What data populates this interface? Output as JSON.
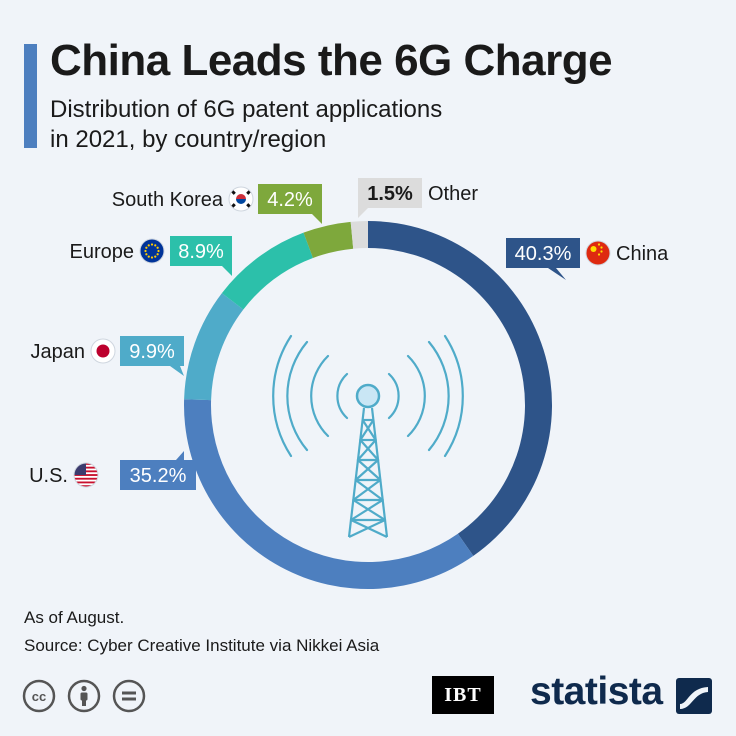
{
  "header": {
    "title": "China Leads the 6G Charge",
    "subtitle_line1": "Distribution of 6G patent applications",
    "subtitle_line2": "in 2021, by country/region"
  },
  "chart_data": {
    "type": "donut",
    "title": "China Leads the 6G Charge",
    "subtitle": "Distribution of 6G patent applications in 2021, by country/region",
    "unit": "%",
    "categories": [
      "China",
      "U.S.",
      "Japan",
      "Europe",
      "South Korea",
      "Other"
    ],
    "values": [
      40.3,
      35.2,
      9.9,
      8.9,
      4.2,
      1.5
    ],
    "labels": [
      "40.3%",
      "35.2%",
      "9.9%",
      "8.9%",
      "4.2%",
      "1.5%"
    ],
    "colors": [
      "#2e5489",
      "#4d7fbf",
      "#4fabc9",
      "#2cc0aa",
      "#7ea83c",
      "#dcdcdc"
    ],
    "label_colors": [
      "#2e5489",
      "#4d7fbf",
      "#4fabc9",
      "#2cc0aa",
      "#7ea83c",
      "#dcdcdc"
    ],
    "label_text_colors": [
      "#ffffff",
      "#ffffff",
      "#ffffff",
      "#ffffff",
      "#ffffff",
      "#1a1a1a"
    ],
    "flag_icons": [
      "china-flag-icon",
      "us-flag-icon",
      "japan-flag-icon",
      "eu-flag-icon",
      "south-korea-flag-icon",
      ""
    ],
    "start_angle_deg": 0,
    "direction": "clockwise"
  },
  "footer": {
    "note": "As of August.",
    "source": "Source: Cyber Creative Institute via Nikkei Asia",
    "icons": [
      "creative-commons-icon",
      "attribution-icon",
      "no-derivatives-icon"
    ],
    "ibt_logo": "IBT",
    "brand": "statista"
  }
}
